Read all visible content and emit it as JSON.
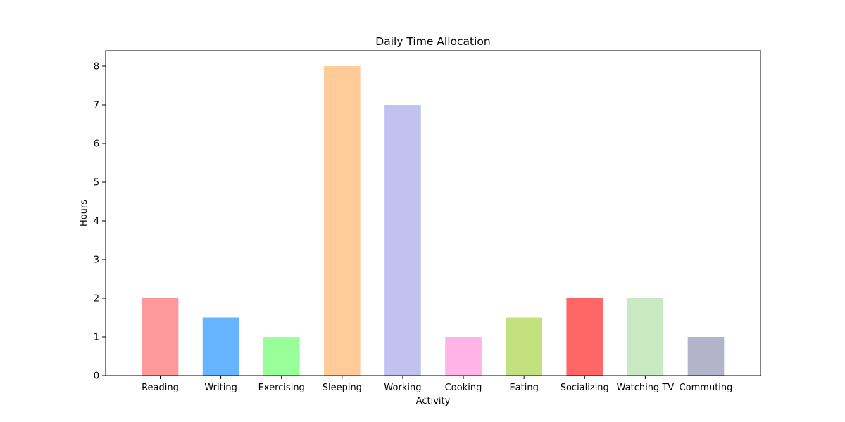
{
  "chart_data": {
    "type": "bar",
    "title": "Daily Time Allocation",
    "xlabel": "Activity",
    "ylabel": "Hours",
    "categories": [
      "Reading",
      "Writing",
      "Exercising",
      "Sleeping",
      "Working",
      "Cooking",
      "Eating",
      "Socializing",
      "Watching TV",
      "Commuting"
    ],
    "values": [
      2,
      1.5,
      1,
      8,
      7,
      1,
      1.5,
      2,
      2,
      1
    ],
    "colors": [
      "#ff9999",
      "#66b3ff",
      "#99ff99",
      "#ffcc99",
      "#c2c2f0",
      "#ffb3e6",
      "#c4e17f",
      "#ff6666",
      "#c9e9c2",
      "#b3b3cc"
    ],
    "ylim": [
      0,
      8.4
    ],
    "yticks": [
      0,
      1,
      2,
      3,
      4,
      5,
      6,
      7,
      8
    ],
    "grid": false,
    "legend": "none"
  }
}
